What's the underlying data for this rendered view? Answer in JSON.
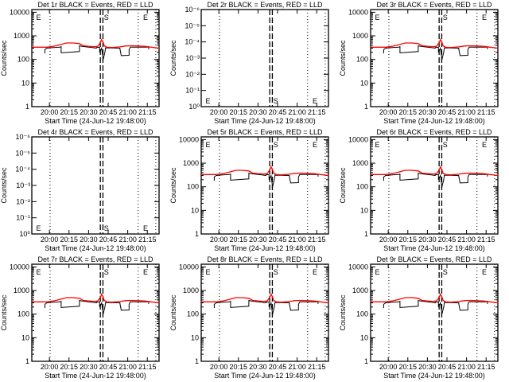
{
  "chart_data": {
    "type": "line",
    "xlabel": "Start Time (24-Jun-12 19:48:00)",
    "x_units": "minutes after 19:48:00",
    "xlim": [
      -1.5,
      96
    ],
    "xtick_values": [
      12,
      27,
      42,
      57,
      72,
      87
    ],
    "xtick_labels": [
      "20:00",
      "20:15",
      "20:30",
      "20:45",
      "21:00",
      "21:15"
    ],
    "ylabel": "Counts/sec",
    "ylim_counts": [
      1,
      13000
    ],
    "ytick_values_counts": [
      1,
      10,
      100,
      1000,
      10000
    ],
    "ytick_labels_counts": [
      "1",
      "10",
      "100",
      "1000",
      "10000"
    ],
    "ytick_labels_empty": [
      "10⁻⁶",
      "10⁻⁵",
      "10⁻⁴",
      "10⁻³",
      "10⁻²",
      "10⁻¹",
      "10⁰"
    ],
    "dotted_lines_x": [
      12.5,
      80,
      93.5
    ],
    "dashed_lines_x": [
      51,
      53
    ],
    "markers": [
      {
        "label": "E",
        "x": 0
      },
      {
        "label": "S",
        "x": 52
      },
      {
        "label": "E",
        "x": 82
      }
    ],
    "series": [
      {
        "name": "Events",
        "color": "#000000",
        "x": [
          8.5,
          8.5,
          10,
          15,
          20,
          21,
          21,
          35,
          35,
          37,
          42,
          45,
          48,
          48,
          50.5,
          50.5,
          52,
          53,
          53,
          54.5,
          55,
          55,
          66,
          66,
          67,
          67,
          73,
          73,
          74,
          88,
          88
        ],
        "y": [
          180,
          260,
          300,
          320,
          330,
          350,
          190,
          215,
          380,
          360,
          330,
          320,
          300,
          320,
          330,
          200,
          300,
          120,
          90,
          200,
          300,
          310,
          300,
          280,
          150,
          145,
          150,
          260,
          330,
          330,
          270
        ]
      },
      {
        "name": "LLD",
        "color": "#ff0000",
        "x": [
          -1.5,
          10,
          15,
          20,
          25,
          30,
          35,
          38,
          42,
          46,
          49,
          51,
          52,
          53,
          54,
          56,
          60,
          66,
          70,
          75,
          80,
          85,
          90,
          96
        ],
        "y": [
          330,
          330,
          360,
          420,
          500,
          500,
          470,
          380,
          360,
          350,
          360,
          520,
          700,
          560,
          380,
          330,
          320,
          340,
          370,
          380,
          370,
          360,
          330,
          300
        ]
      }
    ],
    "panels": [
      {
        "title": "Det 1r BLACK = Events, RED = LLD",
        "empty": false
      },
      {
        "title": "Det 2r BLACK = Events, RED = LLD",
        "empty": true
      },
      {
        "title": "Det 3r BLACK = Events, RED = LLD",
        "empty": false
      },
      {
        "title": "Det 4r BLACK = Events, RED = LLD",
        "empty": true
      },
      {
        "title": "Det 5r BLACK = Events, RED = LLD",
        "empty": false
      },
      {
        "title": "Det 6r BLACK = Events, RED = LLD",
        "empty": false
      },
      {
        "title": "Det 7r BLACK = Events, RED = LLD",
        "empty": false
      },
      {
        "title": "Det 8r BLACK = Events, RED = LLD",
        "empty": false
      },
      {
        "title": "Det 9r BLACK = Events, RED = LLD",
        "empty": false
      }
    ]
  }
}
